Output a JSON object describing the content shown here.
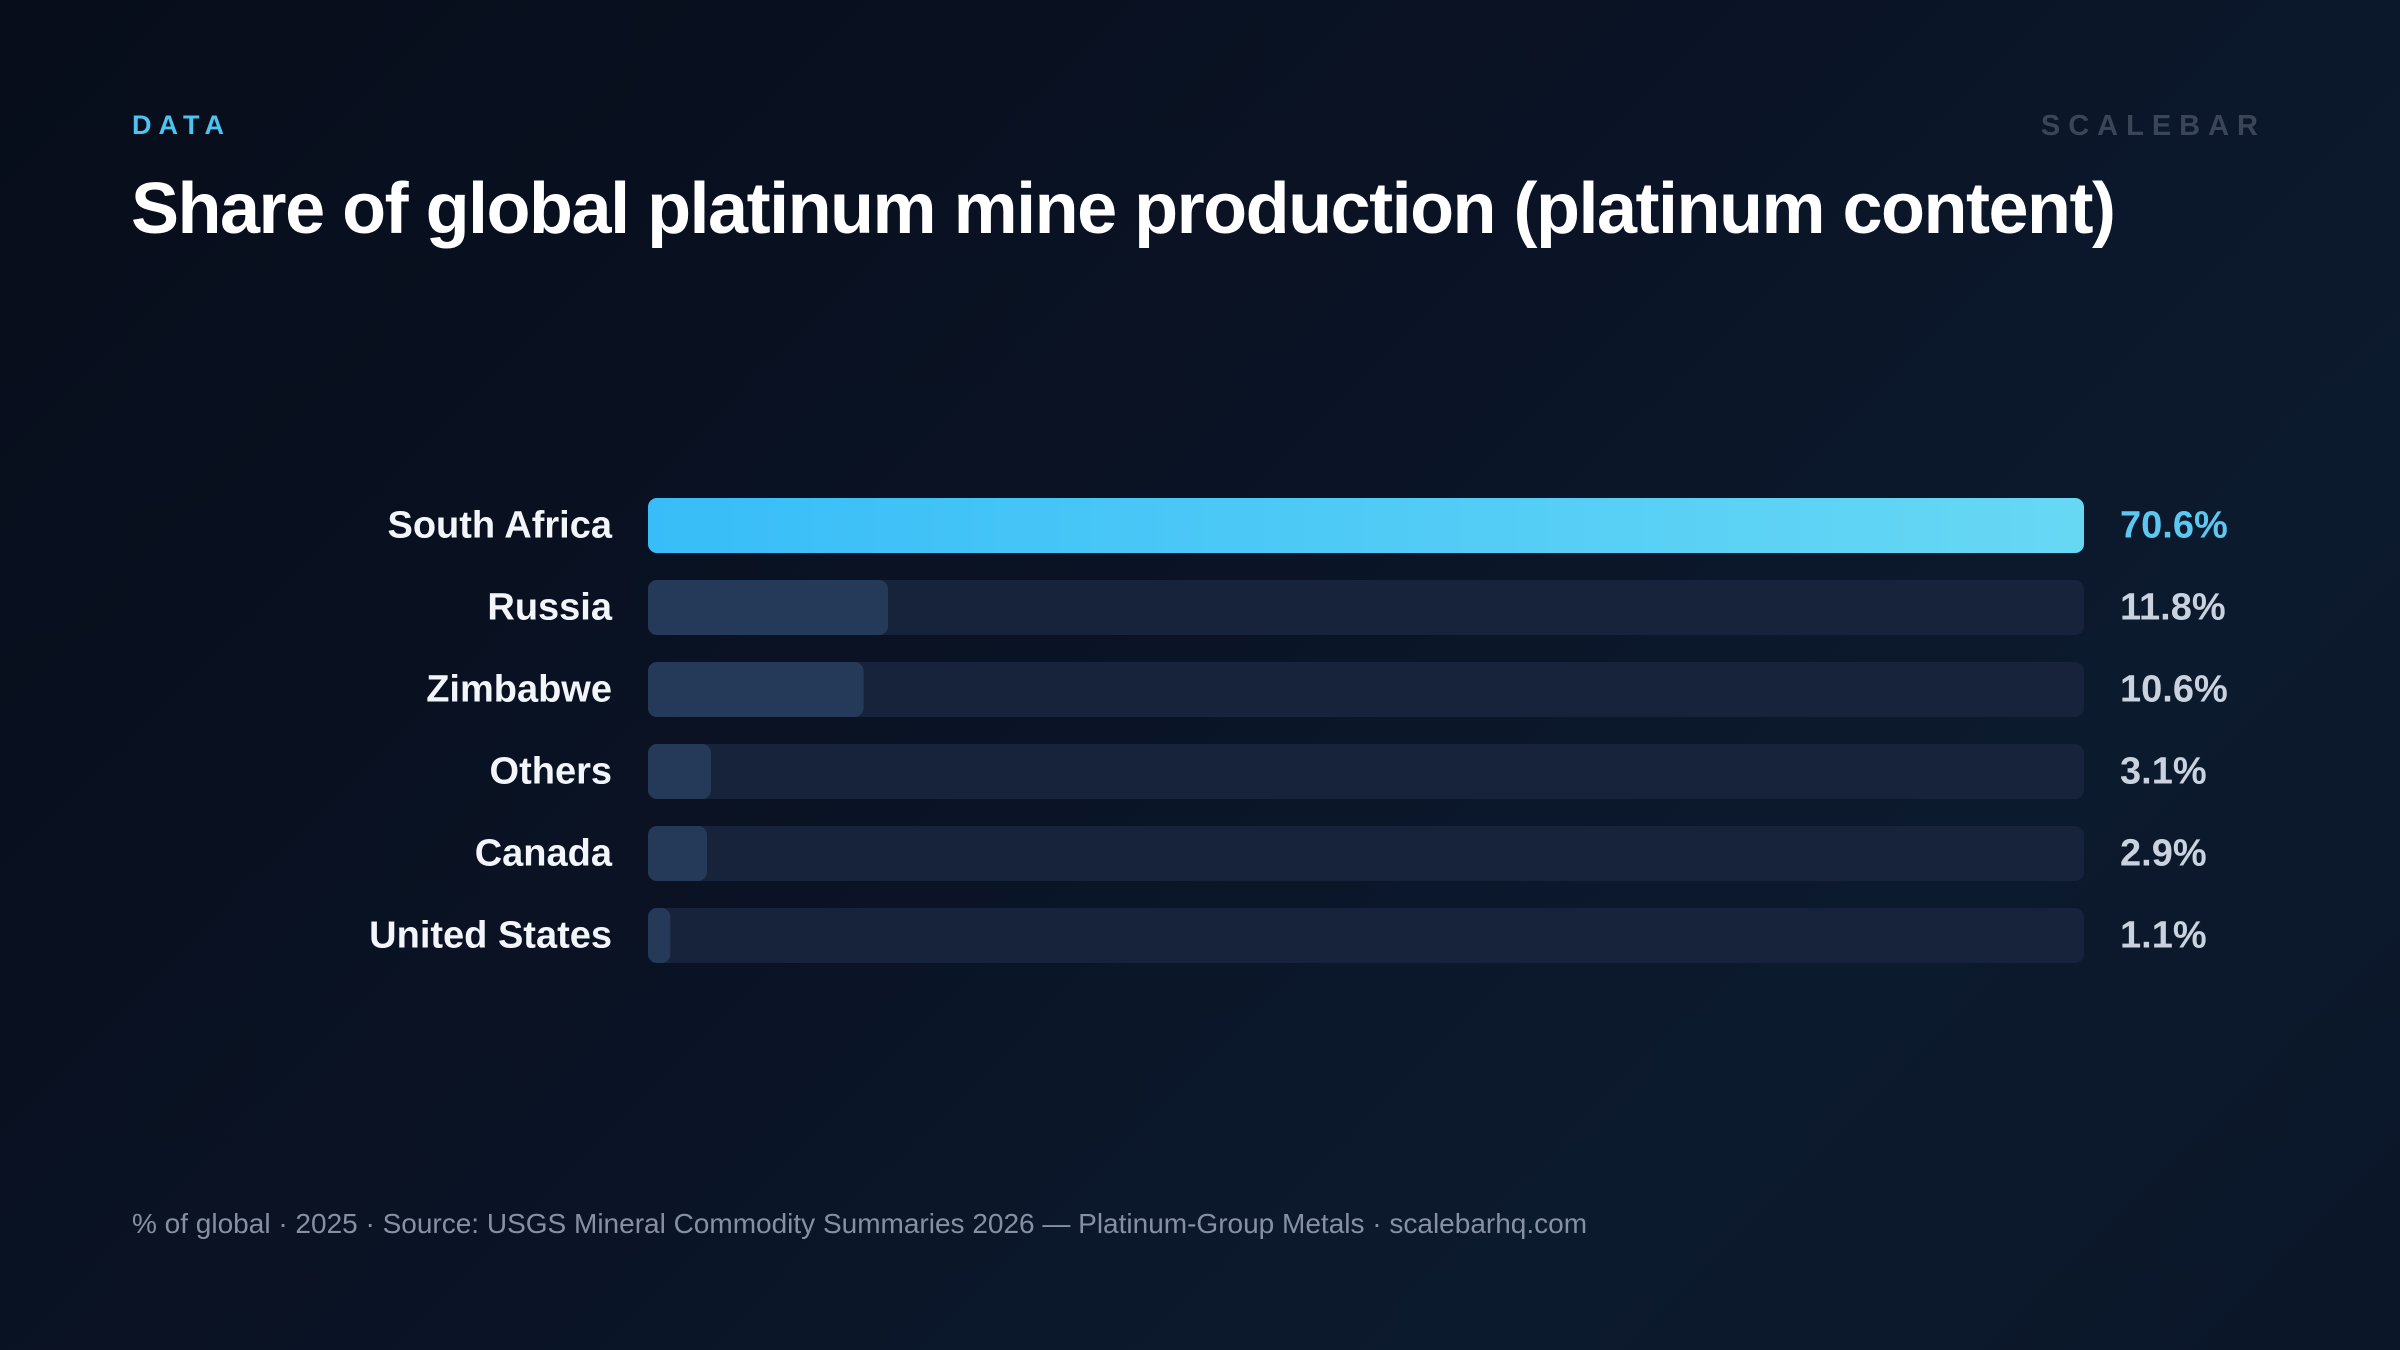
{
  "header": {
    "eyebrow": "DATA",
    "brand": "SCALEBAR",
    "title": "Share of global platinum mine production (platinum content)"
  },
  "footer": {
    "note": "% of global · 2025 · Source: USGS Mineral Commodity Summaries 2026 — Platinum-Group Metals · scalebarhq.com"
  },
  "colors": {
    "highlight_start": "#38bdf8",
    "highlight_end": "#67d8f4",
    "bar": "#243a58",
    "track": "#16233a",
    "label": "#f2f5f9",
    "value": "#c9d2de",
    "value_highlight": "#5cc8f2"
  },
  "chart_data": {
    "type": "bar",
    "orientation": "horizontal",
    "title": "Share of global platinum mine production (platinum content)",
    "unit": "%",
    "xlim": [
      0,
      70.6
    ],
    "grid": false,
    "categories": [
      "South Africa",
      "Russia",
      "Zimbabwe",
      "Others",
      "Canada",
      "United States"
    ],
    "values": [
      70.6,
      11.8,
      10.6,
      3.1,
      2.9,
      1.1
    ],
    "value_labels": [
      "70.6%",
      "11.8%",
      "10.6%",
      "3.1%",
      "2.9%",
      "1.1%"
    ],
    "highlight_index": 0
  }
}
